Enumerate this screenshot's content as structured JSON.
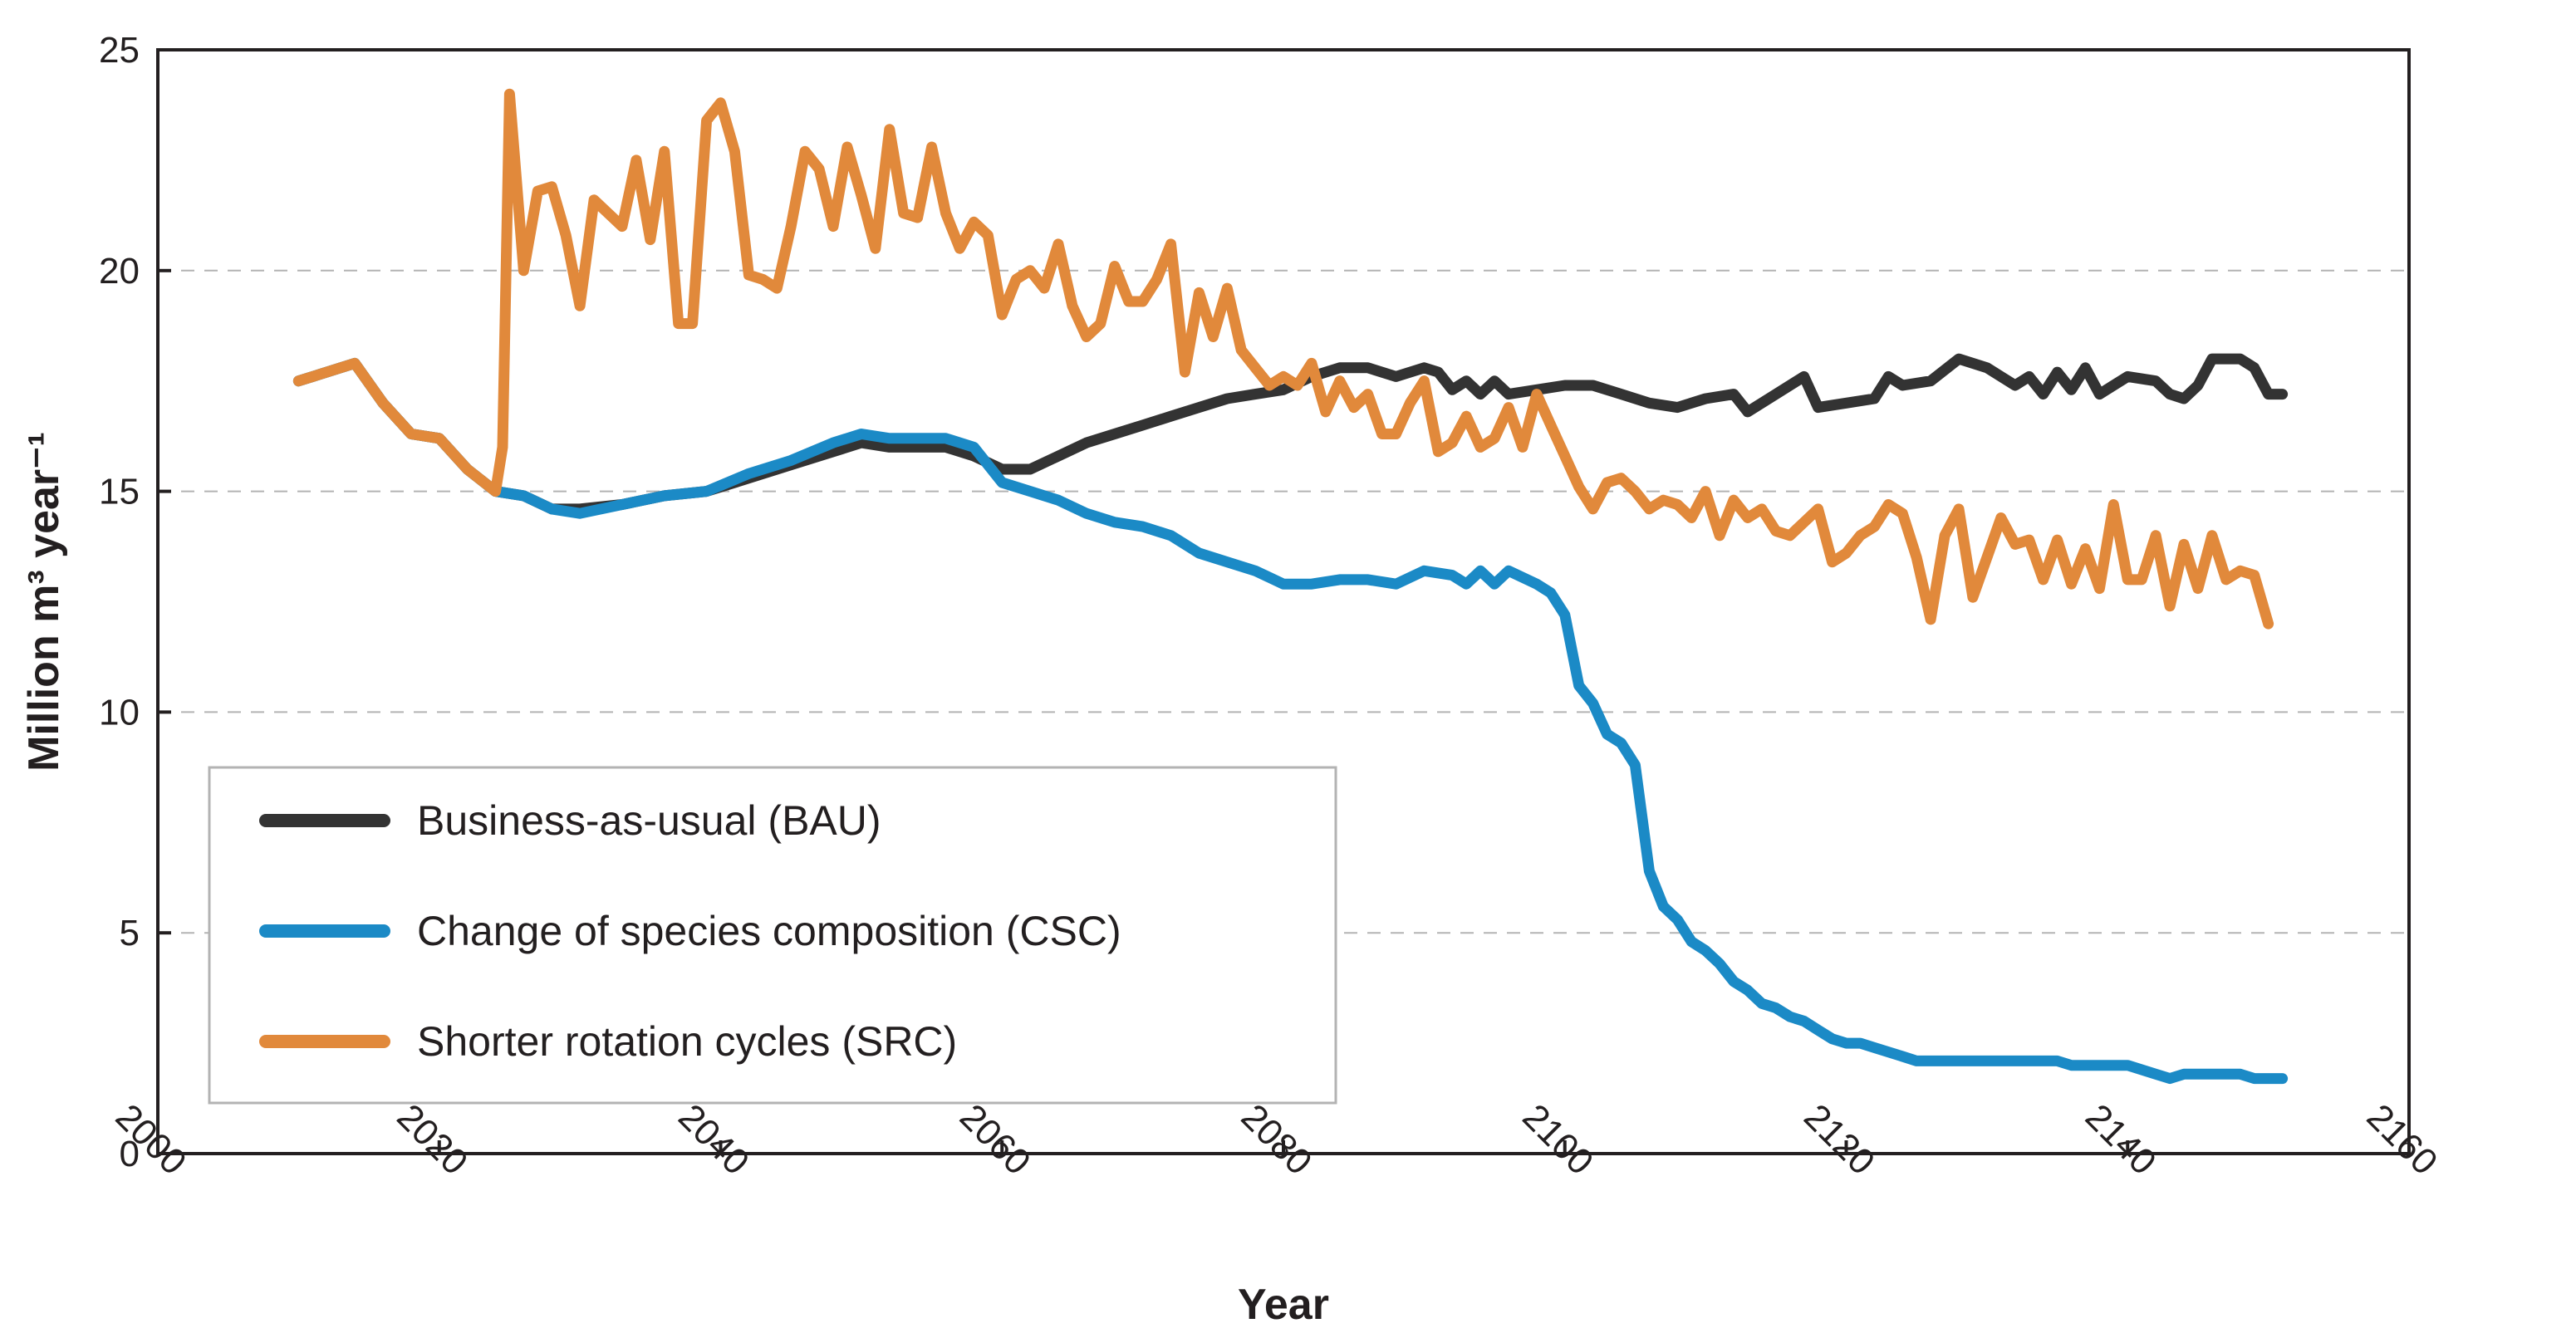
{
  "chart_data": {
    "type": "line",
    "title": "",
    "xlabel": "Year",
    "ylabel": "Million m³ year⁻¹",
    "xlim": [
      2000,
      2160
    ],
    "ylim": [
      0,
      25
    ],
    "xticks": [
      2000,
      2020,
      2040,
      2060,
      2080,
      2100,
      2120,
      2140,
      2160
    ],
    "yticks": [
      0,
      5,
      10,
      15,
      20,
      25
    ],
    "grid": "horizontal dashed",
    "legend_position": "bottom-left",
    "series": [
      {
        "name": "Business-as-usual (BAU)",
        "color": "#333333",
        "points": [
          [
            2010,
            17.5
          ],
          [
            2012,
            17.7
          ],
          [
            2014,
            17.9
          ],
          [
            2016,
            17.0
          ],
          [
            2018,
            16.3
          ],
          [
            2020,
            16.2
          ],
          [
            2022,
            15.5
          ],
          [
            2024,
            15.0
          ],
          [
            2026,
            14.9
          ],
          [
            2028,
            14.6
          ],
          [
            2030,
            14.6
          ],
          [
            2033,
            14.7
          ],
          [
            2036,
            14.9
          ],
          [
            2039,
            15.0
          ],
          [
            2042,
            15.3
          ],
          [
            2045,
            15.6
          ],
          [
            2048,
            15.9
          ],
          [
            2050,
            16.1
          ],
          [
            2052,
            16.0
          ],
          [
            2056,
            16.0
          ],
          [
            2058,
            15.8
          ],
          [
            2060,
            15.5
          ],
          [
            2062,
            15.5
          ],
          [
            2064,
            15.8
          ],
          [
            2066,
            16.1
          ],
          [
            2068,
            16.3
          ],
          [
            2070,
            16.5
          ],
          [
            2072,
            16.7
          ],
          [
            2074,
            16.9
          ],
          [
            2076,
            17.1
          ],
          [
            2078,
            17.2
          ],
          [
            2080,
            17.3
          ],
          [
            2082,
            17.6
          ],
          [
            2084,
            17.8
          ],
          [
            2086,
            17.8
          ],
          [
            2088,
            17.6
          ],
          [
            2090,
            17.8
          ],
          [
            2091,
            17.7
          ],
          [
            2092,
            17.3
          ],
          [
            2093,
            17.5
          ],
          [
            2094,
            17.2
          ],
          [
            2095,
            17.5
          ],
          [
            2096,
            17.2
          ],
          [
            2098,
            17.3
          ],
          [
            2100,
            17.4
          ],
          [
            2102,
            17.4
          ],
          [
            2104,
            17.2
          ],
          [
            2106,
            17.0
          ],
          [
            2108,
            16.9
          ],
          [
            2110,
            17.1
          ],
          [
            2112,
            17.2
          ],
          [
            2113,
            16.8
          ],
          [
            2115,
            17.2
          ],
          [
            2117,
            17.6
          ],
          [
            2118,
            16.9
          ],
          [
            2120,
            17.0
          ],
          [
            2122,
            17.1
          ],
          [
            2123,
            17.6
          ],
          [
            2124,
            17.4
          ],
          [
            2126,
            17.5
          ],
          [
            2128,
            18.0
          ],
          [
            2130,
            17.8
          ],
          [
            2132,
            17.4
          ],
          [
            2133,
            17.6
          ],
          [
            2134,
            17.2
          ],
          [
            2135,
            17.7
          ],
          [
            2136,
            17.3
          ],
          [
            2137,
            17.8
          ],
          [
            2138,
            17.2
          ],
          [
            2140,
            17.6
          ],
          [
            2142,
            17.5
          ],
          [
            2143,
            17.2
          ],
          [
            2144,
            17.1
          ],
          [
            2145,
            17.4
          ],
          [
            2146,
            18.0
          ],
          [
            2148,
            18.0
          ],
          [
            2149,
            17.8
          ],
          [
            2150,
            17.2
          ],
          [
            2151,
            17.2
          ]
        ]
      },
      {
        "name": "Change of species composition (CSC)",
        "color": "#1b8ac6",
        "points": [
          [
            2010,
            17.5
          ],
          [
            2012,
            17.7
          ],
          [
            2014,
            17.9
          ],
          [
            2016,
            17.0
          ],
          [
            2018,
            16.3
          ],
          [
            2020,
            16.2
          ],
          [
            2022,
            15.5
          ],
          [
            2024,
            15.0
          ],
          [
            2026,
            14.9
          ],
          [
            2028,
            14.6
          ],
          [
            2030,
            14.5
          ],
          [
            2033,
            14.7
          ],
          [
            2036,
            14.9
          ],
          [
            2039,
            15.0
          ],
          [
            2042,
            15.4
          ],
          [
            2045,
            15.7
          ],
          [
            2048,
            16.1
          ],
          [
            2050,
            16.3
          ],
          [
            2052,
            16.2
          ],
          [
            2056,
            16.2
          ],
          [
            2058,
            16.0
          ],
          [
            2060,
            15.2
          ],
          [
            2062,
            15.0
          ],
          [
            2064,
            14.8
          ],
          [
            2066,
            14.5
          ],
          [
            2068,
            14.3
          ],
          [
            2070,
            14.2
          ],
          [
            2072,
            14.0
          ],
          [
            2074,
            13.6
          ],
          [
            2076,
            13.4
          ],
          [
            2078,
            13.2
          ],
          [
            2080,
            12.9
          ],
          [
            2082,
            12.9
          ],
          [
            2084,
            13.0
          ],
          [
            2086,
            13.0
          ],
          [
            2088,
            12.9
          ],
          [
            2090,
            13.2
          ],
          [
            2092,
            13.1
          ],
          [
            2093,
            12.9
          ],
          [
            2094,
            13.2
          ],
          [
            2095,
            12.9
          ],
          [
            2096,
            13.2
          ],
          [
            2098,
            12.9
          ],
          [
            2099,
            12.7
          ],
          [
            2100,
            12.2
          ],
          [
            2101,
            10.6
          ],
          [
            2102,
            10.2
          ],
          [
            2103,
            9.5
          ],
          [
            2104,
            9.3
          ],
          [
            2105,
            8.8
          ],
          [
            2106,
            6.4
          ],
          [
            2107,
            5.6
          ],
          [
            2108,
            5.3
          ],
          [
            2109,
            4.8
          ],
          [
            2110,
            4.6
          ],
          [
            2111,
            4.3
          ],
          [
            2112,
            3.9
          ],
          [
            2113,
            3.7
          ],
          [
            2114,
            3.4
          ],
          [
            2115,
            3.3
          ],
          [
            2116,
            3.1
          ],
          [
            2117,
            3.0
          ],
          [
            2118,
            2.8
          ],
          [
            2119,
            2.6
          ],
          [
            2120,
            2.5
          ],
          [
            2121,
            2.5
          ],
          [
            2122,
            2.4
          ],
          [
            2123,
            2.3
          ],
          [
            2124,
            2.2
          ],
          [
            2125,
            2.1
          ],
          [
            2130,
            2.1
          ],
          [
            2135,
            2.1
          ],
          [
            2136,
            2.0
          ],
          [
            2140,
            2.0
          ],
          [
            2142,
            1.8
          ],
          [
            2143,
            1.7
          ],
          [
            2144,
            1.8
          ],
          [
            2148,
            1.8
          ],
          [
            2149,
            1.7
          ],
          [
            2151,
            1.7
          ]
        ]
      },
      {
        "name": "Shorter rotation cycles (SRC)",
        "color": "#e1893b",
        "points": [
          [
            2010,
            17.5
          ],
          [
            2012,
            17.7
          ],
          [
            2014,
            17.9
          ],
          [
            2016,
            17.0
          ],
          [
            2018,
            16.3
          ],
          [
            2020,
            16.2
          ],
          [
            2022,
            15.5
          ],
          [
            2024,
            15.0
          ],
          [
            2024.5,
            16.0
          ],
          [
            2025,
            24.0
          ],
          [
            2026,
            20.0
          ],
          [
            2027,
            21.8
          ],
          [
            2028,
            21.9
          ],
          [
            2029,
            20.8
          ],
          [
            2030,
            19.2
          ],
          [
            2031,
            21.6
          ],
          [
            2032,
            21.3
          ],
          [
            2033,
            21.0
          ],
          [
            2034,
            22.5
          ],
          [
            2035,
            20.7
          ],
          [
            2036,
            22.7
          ],
          [
            2037,
            18.8
          ],
          [
            2038,
            18.8
          ],
          [
            2039,
            23.4
          ],
          [
            2040,
            23.8
          ],
          [
            2041,
            22.7
          ],
          [
            2042,
            19.9
          ],
          [
            2043,
            19.8
          ],
          [
            2044,
            19.6
          ],
          [
            2045,
            21.0
          ],
          [
            2046,
            22.7
          ],
          [
            2047,
            22.3
          ],
          [
            2048,
            21.0
          ],
          [
            2049,
            22.8
          ],
          [
            2050,
            21.7
          ],
          [
            2051,
            20.5
          ],
          [
            2052,
            23.2
          ],
          [
            2053,
            21.3
          ],
          [
            2054,
            21.2
          ],
          [
            2055,
            22.8
          ],
          [
            2056,
            21.3
          ],
          [
            2057,
            20.5
          ],
          [
            2058,
            21.1
          ],
          [
            2059,
            20.8
          ],
          [
            2060,
            19.0
          ],
          [
            2061,
            19.8
          ],
          [
            2062,
            20.0
          ],
          [
            2063,
            19.6
          ],
          [
            2064,
            20.6
          ],
          [
            2065,
            19.2
          ],
          [
            2066,
            18.5
          ],
          [
            2067,
            18.8
          ],
          [
            2068,
            20.1
          ],
          [
            2069,
            19.3
          ],
          [
            2070,
            19.3
          ],
          [
            2071,
            19.8
          ],
          [
            2072,
            20.6
          ],
          [
            2073,
            17.7
          ],
          [
            2074,
            19.5
          ],
          [
            2075,
            18.5
          ],
          [
            2076,
            19.6
          ],
          [
            2077,
            18.2
          ],
          [
            2078,
            17.8
          ],
          [
            2079,
            17.4
          ],
          [
            2080,
            17.6
          ],
          [
            2081,
            17.4
          ],
          [
            2082,
            17.9
          ],
          [
            2083,
            16.8
          ],
          [
            2084,
            17.5
          ],
          [
            2085,
            16.9
          ],
          [
            2086,
            17.2
          ],
          [
            2087,
            16.3
          ],
          [
            2088,
            16.3
          ],
          [
            2089,
            17.0
          ],
          [
            2090,
            17.5
          ],
          [
            2091,
            15.9
          ],
          [
            2092,
            16.1
          ],
          [
            2093,
            16.7
          ],
          [
            2094,
            16.0
          ],
          [
            2095,
            16.2
          ],
          [
            2096,
            16.9
          ],
          [
            2097,
            16.0
          ],
          [
            2098,
            17.2
          ],
          [
            2099,
            16.5
          ],
          [
            2100,
            15.8
          ],
          [
            2101,
            15.1
          ],
          [
            2102,
            14.6
          ],
          [
            2103,
            15.2
          ],
          [
            2104,
            15.3
          ],
          [
            2105,
            15.0
          ],
          [
            2106,
            14.6
          ],
          [
            2107,
            14.8
          ],
          [
            2108,
            14.7
          ],
          [
            2109,
            14.4
          ],
          [
            2110,
            15.0
          ],
          [
            2111,
            14.0
          ],
          [
            2112,
            14.8
          ],
          [
            2113,
            14.4
          ],
          [
            2114,
            14.6
          ],
          [
            2115,
            14.1
          ],
          [
            2116,
            14.0
          ],
          [
            2117,
            14.3
          ],
          [
            2118,
            14.6
          ],
          [
            2119,
            13.4
          ],
          [
            2120,
            13.6
          ],
          [
            2121,
            14.0
          ],
          [
            2122,
            14.2
          ],
          [
            2123,
            14.7
          ],
          [
            2124,
            14.5
          ],
          [
            2125,
            13.5
          ],
          [
            2126,
            12.1
          ],
          [
            2127,
            14.0
          ],
          [
            2128,
            14.6
          ],
          [
            2129,
            12.6
          ],
          [
            2130,
            13.5
          ],
          [
            2131,
            14.4
          ],
          [
            2132,
            13.8
          ],
          [
            2133,
            13.9
          ],
          [
            2134,
            13.0
          ],
          [
            2135,
            13.9
          ],
          [
            2136,
            12.9
          ],
          [
            2137,
            13.7
          ],
          [
            2138,
            12.8
          ],
          [
            2139,
            14.7
          ],
          [
            2140,
            13.0
          ],
          [
            2141,
            13.0
          ],
          [
            2142,
            14.0
          ],
          [
            2143,
            12.4
          ],
          [
            2144,
            13.8
          ],
          [
            2145,
            12.8
          ],
          [
            2146,
            14.0
          ],
          [
            2147,
            13.0
          ],
          [
            2148,
            13.2
          ],
          [
            2149,
            13.1
          ],
          [
            2150,
            12.0
          ]
        ]
      }
    ]
  }
}
